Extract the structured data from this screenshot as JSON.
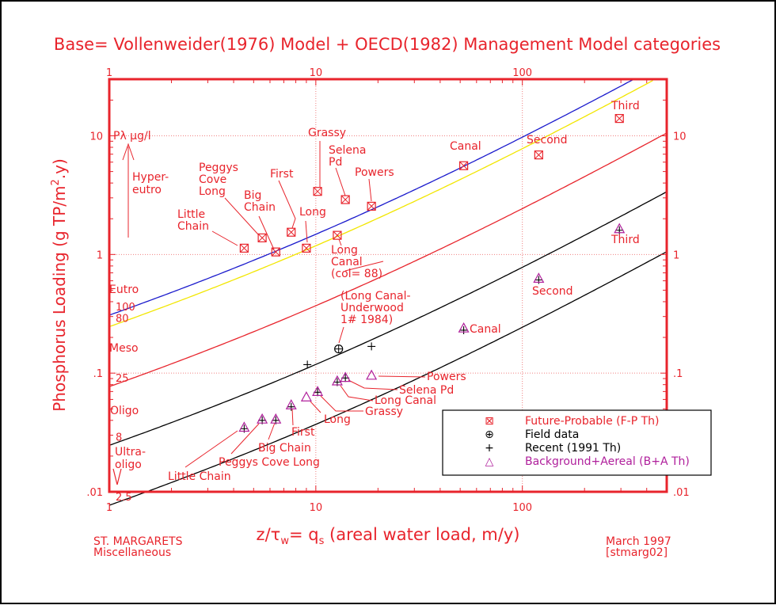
{
  "chart_data": {
    "type": "scatter",
    "title": "Base= Vollenweider(1976) Model + OECD(1982) Management Model categories",
    "xlabel_parts": {
      "z": "z/",
      "tau": "τ",
      "w": "w",
      "eq": "= q",
      "s": "s",
      "rest": " (areal water load, m/y)"
    },
    "xlabel": "z/τw= qs (areal water load, m/y)",
    "ylabel": "Phosphorus Loading (g TP/m².y)",
    "ylabel_parts": {
      "a": "Phosphorus Loading (g TP/m",
      "sup": "2",
      "b": ".y)"
    },
    "xscale": "log",
    "yscale": "log",
    "xlim": [
      1,
      500
    ],
    "ylim": [
      0.01,
      30
    ],
    "x_ticks": [
      {
        "value": 1,
        "label": "1"
      },
      {
        "value": 10,
        "label": "10"
      },
      {
        "value": 100,
        "label": "100"
      }
    ],
    "y_ticks": [
      {
        "value": 0.01,
        "label": ".01"
      },
      {
        "value": 0.1,
        "label": ".1"
      },
      {
        "value": 1,
        "label": "1"
      },
      {
        "value": 10,
        "label": "10"
      }
    ],
    "grid": "dotted at decades",
    "p_axis_label": "Pλ μg/l",
    "model_curves": [
      {
        "name": "100",
        "p_ugl": 100,
        "color": "#1a1acc",
        "label": "100"
      },
      {
        "name": "80",
        "p_ugl": 80,
        "color": "#f2e600",
        "label": "80"
      },
      {
        "name": "25",
        "p_ugl": 25,
        "color": "#e8242c",
        "label": "25"
      },
      {
        "name": "8",
        "p_ugl": 8,
        "color": "#000000",
        "label": "8"
      },
      {
        "name": "2.5",
        "p_ugl": 2.5,
        "color": "#000000",
        "label": "2.5"
      }
    ],
    "trophic_zones": [
      {
        "label": "Hyper-\neutro",
        "lines": [
          "Hyper-",
          "eutro"
        ]
      },
      {
        "label": "Eutro",
        "lines": [
          "Eutro"
        ]
      },
      {
        "label": "Meso",
        "lines": [
          "Meso"
        ]
      },
      {
        "label": "Oligo",
        "lines": [
          "Oligo"
        ]
      },
      {
        "label": "Ultra-\noligo",
        "lines": [
          "Ultra-",
          "oligo"
        ]
      }
    ],
    "series": [
      {
        "name": "Future-Probable (F-P Th)",
        "marker": "boxed-x",
        "color": "#e8242c",
        "points": [
          {
            "label": "Little Chain",
            "x": 4.5,
            "y": 1.13
          },
          {
            "label": "Peggys Cove Long",
            "x": 5.5,
            "y": 1.38
          },
          {
            "label": "Big Chain",
            "x": 6.4,
            "y": 1.05
          },
          {
            "label": "First",
            "x": 7.6,
            "y": 1.54
          },
          {
            "label": "Long",
            "x": 9.0,
            "y": 1.13
          },
          {
            "label": "Grassy",
            "x": 10.2,
            "y": 3.4
          },
          {
            "label": "Selena Pd",
            "x": 13.9,
            "y": 2.9
          },
          {
            "label": "Powers",
            "x": 18.6,
            "y": 2.55
          },
          {
            "label": "Long Canal (col= 88)",
            "x": 12.7,
            "y": 1.45
          },
          {
            "label": "Canal",
            "x": 52,
            "y": 5.6
          },
          {
            "label": "Second",
            "x": 120,
            "y": 6.9
          },
          {
            "label": "Third",
            "x": 295,
            "y": 14
          }
        ]
      },
      {
        "name": "Field data",
        "marker": "circle-plus",
        "color": "#000000",
        "points": [
          {
            "label": "(Long Canal- Underwood 1# 1984)",
            "x": 12.9,
            "y": 0.16
          }
        ]
      },
      {
        "name": "Recent (1991 Th)",
        "marker": "plus",
        "color": "#000000",
        "points": [
          {
            "label": "Little Chain",
            "x": 4.5,
            "y": 0.034
          },
          {
            "label": "Peggys Cove Long",
            "x": 5.5,
            "y": 0.04
          },
          {
            "label": "Big Chain",
            "x": 6.4,
            "y": 0.04
          },
          {
            "label": "First",
            "x": 7.6,
            "y": 0.052
          },
          {
            "label": "Grassy",
            "x": 10.2,
            "y": 0.069
          },
          {
            "label": "Long Canal",
            "x": 12.7,
            "y": 0.084
          },
          {
            "label": "Selena Pd",
            "x": 13.9,
            "y": 0.091
          },
          {
            "label": "(unlabeled)",
            "x": 9.1,
            "y": 0.118
          },
          {
            "label": "(unlabeled)",
            "x": 18.6,
            "y": 0.168
          },
          {
            "label": "Canal",
            "x": 52,
            "y": 0.23
          },
          {
            "label": "Second",
            "x": 120,
            "y": 0.61
          },
          {
            "label": "Third",
            "x": 295,
            "y": 1.6
          }
        ]
      },
      {
        "name": "Background+Aereal (B+A Th)",
        "marker": "triangle",
        "color": "#b0209c",
        "points": [
          {
            "label": "Little Chain",
            "x": 4.5,
            "y": 0.035
          },
          {
            "label": "Peggys Cove Long",
            "x": 5.5,
            "y": 0.041
          },
          {
            "label": "Big Chain",
            "x": 6.4,
            "y": 0.041
          },
          {
            "label": "First",
            "x": 7.6,
            "y": 0.054
          },
          {
            "label": "Long",
            "x": 9.0,
            "y": 0.063
          },
          {
            "label": "Grassy",
            "x": 10.2,
            "y": 0.07
          },
          {
            "label": "Long Canal",
            "x": 12.7,
            "y": 0.086
          },
          {
            "label": "Selena Pd",
            "x": 13.9,
            "y": 0.092
          },
          {
            "label": "Powers",
            "x": 18.6,
            "y": 0.096
          },
          {
            "label": "Canal",
            "x": 52,
            "y": 0.24
          },
          {
            "label": "Second",
            "x": 120,
            "y": 0.63
          },
          {
            "label": "Third",
            "x": 295,
            "y": 1.65
          }
        ]
      }
    ],
    "legend": {
      "placement": "bottom-right",
      "entries": [
        {
          "symbol": "⊠",
          "label": "Future-Probable (F-P Th)",
          "color": "#e8242c"
        },
        {
          "symbol": "⊕",
          "label": "Field data",
          "color": "#000000"
        },
        {
          "symbol": "+",
          "label": "Recent (1991 Th)",
          "color": "#000000"
        },
        {
          "symbol": "△",
          "label": "Background+Aereal (B+A Th)",
          "color": "#b0209c"
        }
      ]
    }
  },
  "footer": {
    "left_line1": "ST. MARGARETS",
    "left_line2": "Miscellaneous",
    "right_line1": "March 1997",
    "right_line2": "[stmarg02]"
  },
  "colors": {
    "accent_red": "#e8242c",
    "purple": "#b0209c",
    "blue": "#1a1acc",
    "yellow": "#f2e600"
  }
}
